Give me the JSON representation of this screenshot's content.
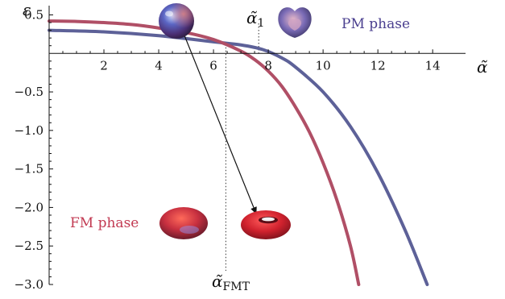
{
  "chart_data": {
    "type": "line",
    "xlabel": "α̃",
    "ylabel": "ε",
    "xlim": [
      0,
      15.2
    ],
    "ylim": [
      -3.0,
      0.62
    ],
    "x_ticks": [
      2,
      4,
      6,
      8,
      10,
      12,
      14
    ],
    "y_ticks": [
      0.5,
      -0.5,
      -1.0,
      -1.5,
      -2.0,
      -2.5,
      -3.0
    ],
    "x_tick_labels": [
      "2",
      "4",
      "6",
      "8",
      "10",
      "12",
      "14"
    ],
    "y_tick_labels": [
      "0.5",
      "−0.5",
      "−1.0",
      "−1.5",
      "−2.0",
      "−2.5",
      "−3.0"
    ],
    "grid": false,
    "series": [
      {
        "id": "pm",
        "color": "#5d6198",
        "x": [
          0,
          2,
          4,
          6,
          7,
          7.8,
          8.5,
          9,
          10,
          11,
          12,
          13,
          13.8
        ],
        "y": [
          0.3,
          0.28,
          0.23,
          0.15,
          0.11,
          0.05,
          -0.06,
          -0.18,
          -0.5,
          -0.95,
          -1.55,
          -2.3,
          -3.0
        ]
      },
      {
        "id": "fm",
        "color": "#b04f66",
        "x": [
          0,
          1,
          2,
          3,
          4,
          5,
          6,
          7,
          7.5,
          8,
          8.5,
          9,
          9.5,
          10,
          10.5,
          11,
          11.3
        ],
        "y": [
          0.42,
          0.415,
          0.4,
          0.375,
          0.33,
          0.27,
          0.18,
          0.03,
          -0.08,
          -0.23,
          -0.43,
          -0.7,
          -1.02,
          -1.42,
          -1.9,
          -2.5,
          -3.0
        ]
      }
    ],
    "annotations": {
      "pm_phase": "PM phase",
      "fm_phase": "FM phase",
      "alpha1_symbol": "α̃",
      "alpha1_sub": "1",
      "alpha1_x": 7.65,
      "alpha_fmt_symbol": "α̃",
      "alpha_fmt_sub": "FMT",
      "alpha_fmt_x": 6.45
    },
    "phase_colors": {
      "pm": "#4a3f8f",
      "fm": "#c23a52"
    }
  },
  "icons": [
    "sphere-icon",
    "heart-shape-icon",
    "oblate-spheroid-icon",
    "torus-icon"
  ]
}
